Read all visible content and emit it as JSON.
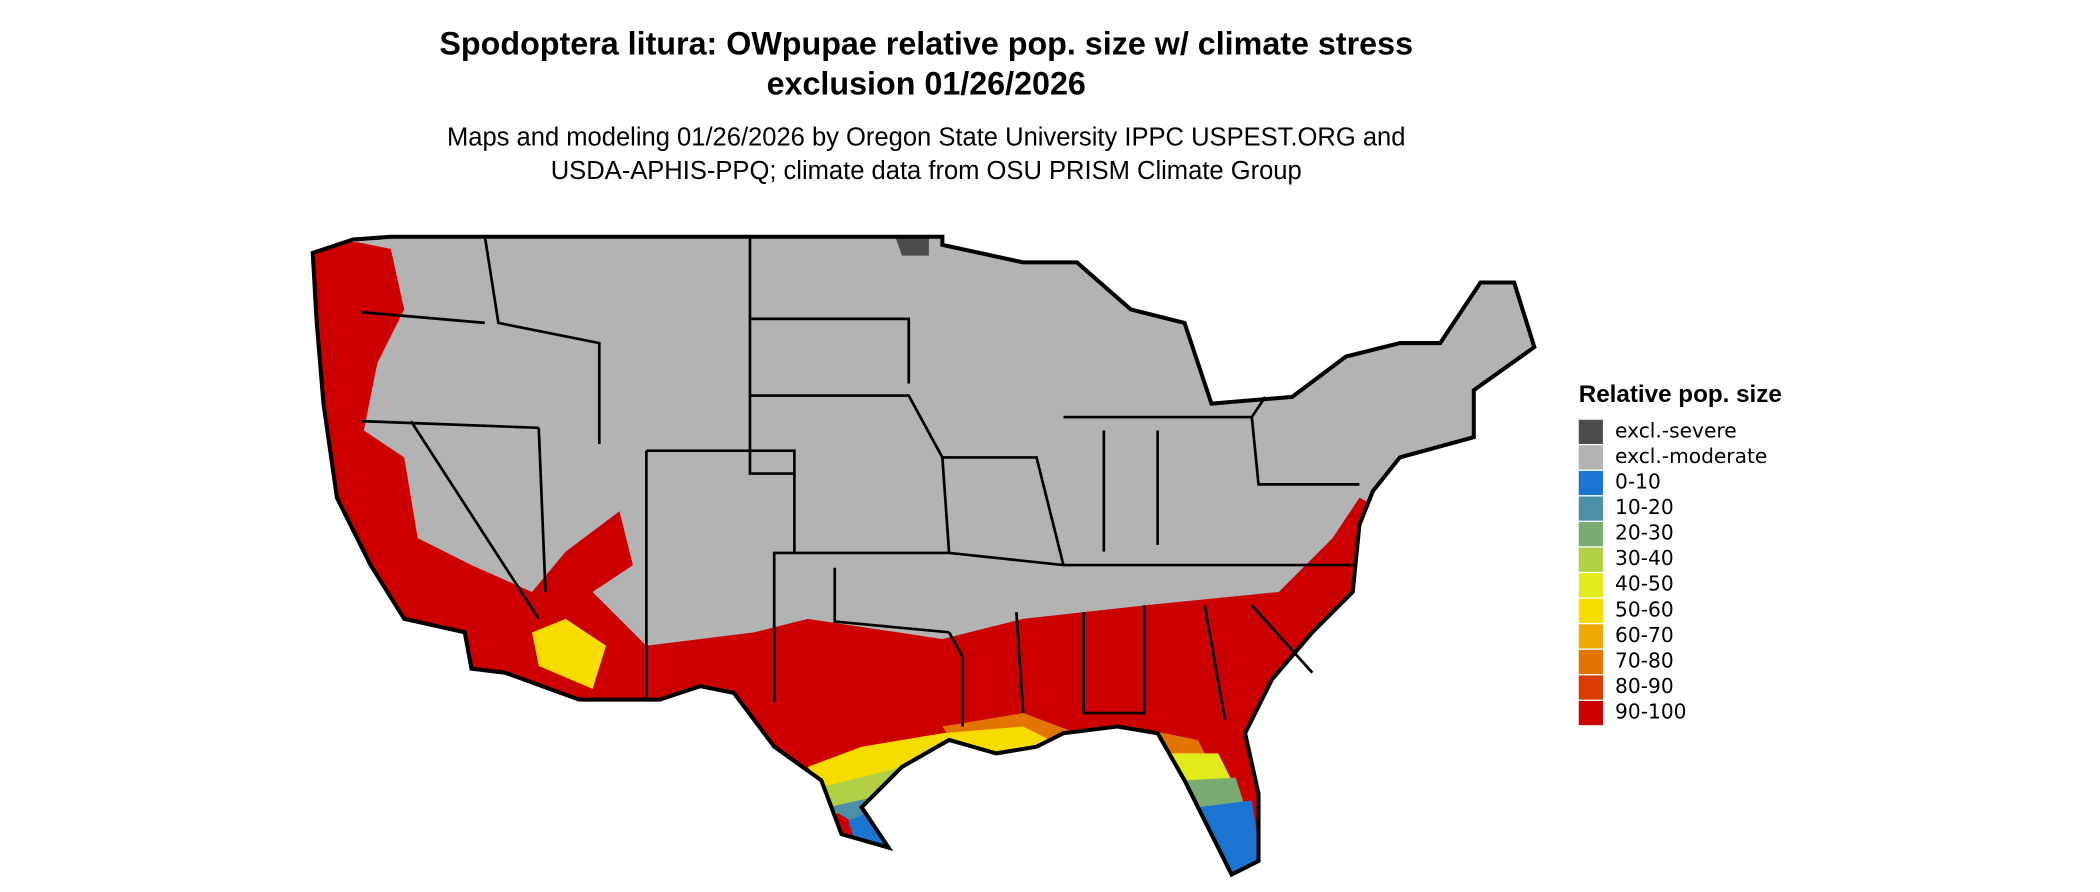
{
  "title": [
    "Spodoptera litura: OWpupae relative pop. size w/ climate stress",
    "exclusion 01/26/2026"
  ],
  "subtitle": [
    "Maps and modeling 01/26/2026 by Oregon State University IPPC USPEST.ORG and",
    "USDA-APHIS-PPQ; climate data from OSU PRISM Climate Group"
  ],
  "legend": {
    "title": "Relative pop. size",
    "items": [
      {
        "label": "excl.-severe",
        "color": "#4d4d4d"
      },
      {
        "label": "excl.-moderate",
        "color": "#b3b3b3"
      },
      {
        "label": "0-10",
        "color": "#1c74d2"
      },
      {
        "label": "10-20",
        "color": "#4a8fa6"
      },
      {
        "label": "20-30",
        "color": "#7aab72"
      },
      {
        "label": "30-40",
        "color": "#b2d045"
      },
      {
        "label": "40-50",
        "color": "#e1eb1b"
      },
      {
        "label": "50-60",
        "color": "#f7dc00"
      },
      {
        "label": "60-70",
        "color": "#eeaa00"
      },
      {
        "label": "70-80",
        "color": "#e47400"
      },
      {
        "label": "80-90",
        "color": "#d93b00"
      },
      {
        "label": "90-100",
        "color": "#cc0000"
      }
    ]
  }
}
